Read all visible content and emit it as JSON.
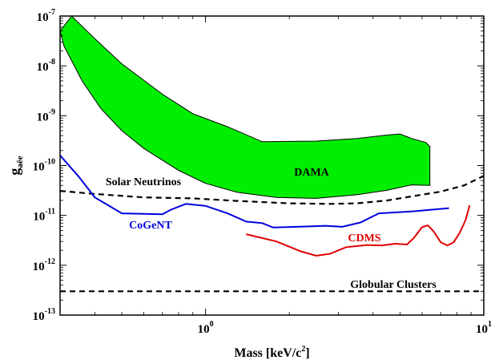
{
  "chart_data": {
    "type": "line",
    "xlabel_main": "Mass [keV/c",
    "xlabel_sup": "2",
    "xlabel_tail": "]",
    "ylabel_main": "g",
    "ylabel_sub": "aēe",
    "xscale": "log",
    "yscale": "log",
    "xlim": [
      0.3,
      10
    ],
    "ylim": [
      1e-13,
      1e-07
    ],
    "grid": false,
    "x_ticks": [
      {
        "base": "10",
        "exp": "0"
      },
      {
        "base": "10",
        "exp": "1"
      }
    ],
    "y_ticks": [
      {
        "base": "10",
        "exp": "-7"
      },
      {
        "base": "10",
        "exp": "-8"
      },
      {
        "base": "10",
        "exp": "-9"
      },
      {
        "base": "10",
        "exp": "-10"
      },
      {
        "base": "10",
        "exp": "-11"
      },
      {
        "base": "10",
        "exp": "-12"
      },
      {
        "base": "10",
        "exp": "-13"
      }
    ],
    "colors": {
      "dama_fill": "#00ee00",
      "cogent": "#0000dd",
      "cdms": "#e00000",
      "black": "#000000"
    },
    "annotations": {
      "dama": "DAMA",
      "solar": "Solar Neutrinos",
      "cogent": "CoGeNT",
      "cdms": "CDMS",
      "globular": "Globular Clusters"
    },
    "series": [
      {
        "key": "dama",
        "style": "filled-band",
        "upper": [
          [
            0.33,
            1e-07
          ],
          [
            0.4,
            3.5e-08
          ],
          [
            0.5,
            1.1e-08
          ],
          [
            0.7,
            2.7e-09
          ],
          [
            0.9,
            1.1e-09
          ],
          [
            1.2,
            6e-10
          ],
          [
            1.6,
            3e-10
          ],
          [
            2.5,
            3.1e-10
          ],
          [
            3.5,
            3.5e-10
          ],
          [
            4.5,
            4.1e-10
          ],
          [
            5,
            4.3e-10
          ],
          [
            5.5,
            3.5e-10
          ],
          [
            6.2,
            2.9e-10
          ],
          [
            6.4,
            2.4e-10
          ]
        ],
        "lower": [
          [
            6.4,
            4e-11
          ],
          [
            5.5,
            4.1e-11
          ],
          [
            4.5,
            3.2e-11
          ],
          [
            3.5,
            2.6e-11
          ],
          [
            2.5,
            2.2e-11
          ],
          [
            1.8,
            2.3e-11
          ],
          [
            1.3,
            2.9e-11
          ],
          [
            1,
            4.4e-11
          ],
          [
            0.8,
            8e-11
          ],
          [
            0.6,
            2.2e-10
          ],
          [
            0.5,
            5e-10
          ],
          [
            0.42,
            1.4e-09
          ],
          [
            0.36,
            5e-09
          ],
          [
            0.31,
            2.5e-08
          ],
          [
            0.3,
            5e-08
          ]
        ]
      },
      {
        "key": "solar",
        "style": "dashed",
        "points": [
          [
            0.3,
            3.1e-11
          ],
          [
            0.4,
            2.7e-11
          ],
          [
            0.6,
            2.3e-11
          ],
          [
            0.9,
            2.2e-11
          ],
          [
            1.3,
            1.95e-11
          ],
          [
            2,
            1.75e-11
          ],
          [
            2.8,
            1.7e-11
          ],
          [
            3.5,
            1.75e-11
          ],
          [
            4.5,
            2e-11
          ],
          [
            5.5,
            2.4e-11
          ],
          [
            7,
            3e-11
          ],
          [
            8.5,
            4e-11
          ],
          [
            10,
            6.2e-11
          ]
        ]
      },
      {
        "key": "cogent",
        "style": "solid",
        "points": [
          [
            0.3,
            1.6e-10
          ],
          [
            0.35,
            6e-11
          ],
          [
            0.4,
            2.3e-11
          ],
          [
            0.5,
            1.1e-11
          ],
          [
            0.7,
            1.05e-11
          ],
          [
            0.75,
            1.3e-11
          ],
          [
            0.85,
            1.7e-11
          ],
          [
            1.0,
            1.55e-11
          ],
          [
            1.2,
            1.1e-11
          ],
          [
            1.4,
            7.5e-12
          ],
          [
            1.6,
            7e-12
          ],
          [
            1.75,
            5.7e-12
          ],
          [
            2.3,
            6e-12
          ],
          [
            2.7,
            6.2e-12
          ],
          [
            3.1,
            5.9e-12
          ],
          [
            3.6,
            7.2e-12
          ],
          [
            4.2,
            1.1e-11
          ],
          [
            5.5,
            1.2e-11
          ],
          [
            7.5,
            1.4e-11
          ]
        ]
      },
      {
        "key": "cdms",
        "style": "solid",
        "points": [
          [
            1.4,
            4.2e-12
          ],
          [
            1.8,
            3e-12
          ],
          [
            2.2,
            1.9e-12
          ],
          [
            2.5,
            1.55e-12
          ],
          [
            2.8,
            1.7e-12
          ],
          [
            3.2,
            2.3e-12
          ],
          [
            3.8,
            2.55e-12
          ],
          [
            4.3,
            2.5e-12
          ],
          [
            4.8,
            2.7e-12
          ],
          [
            5.3,
            2.6e-12
          ],
          [
            5.6,
            3.5e-12
          ],
          [
            6.0,
            5.8e-12
          ],
          [
            6.3,
            6.3e-12
          ],
          [
            6.6,
            4.8e-12
          ],
          [
            7,
            2.9e-12
          ],
          [
            7.4,
            2.5e-12
          ],
          [
            7.8,
            2.9e-12
          ],
          [
            8.2,
            4.5e-12
          ],
          [
            8.6,
            8e-12
          ],
          [
            8.9,
            1.6e-11
          ]
        ]
      },
      {
        "key": "globular",
        "style": "dashed",
        "points": [
          [
            0.3,
            3e-13
          ],
          [
            10,
            3e-13
          ]
        ]
      }
    ]
  }
}
